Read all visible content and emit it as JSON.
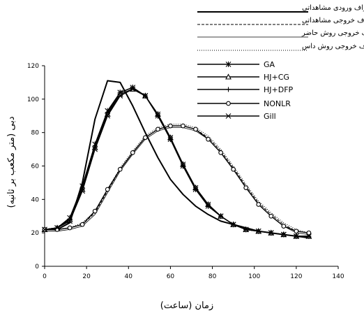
{
  "chart_data": {
    "type": "line",
    "title": "",
    "xlabel": "زمان (ساعت)",
    "ylabel": "دبی (متر مکعب بر ثانیه)",
    "xlim": [
      0,
      140
    ],
    "ylim": [
      0,
      120
    ],
    "xticks": [
      "0",
      "20",
      "40",
      "60",
      "80",
      "100",
      "120",
      "140"
    ],
    "yticks": [
      "0",
      "20",
      "40",
      "60",
      "80",
      "100",
      "120"
    ],
    "grid": false,
    "legend_position": "top-right",
    "series": [
      {
        "name": "هیدروگراف ورودی مشاهداتی",
        "style": "thick-solid",
        "marker": "none",
        "x": [
          0,
          6,
          12,
          18,
          24,
          30,
          36,
          42,
          48,
          54,
          60,
          66,
          72,
          78,
          84,
          90,
          96,
          102,
          108,
          114,
          120,
          126
        ],
        "y": [
          22,
          22,
          26,
          50,
          88,
          111,
          110,
          96,
          80,
          65,
          52,
          43,
          36,
          31,
          27,
          25,
          23,
          21,
          20,
          19,
          18,
          17
        ]
      },
      {
        "name": "هیدروگراف خروجی مشاهداتی",
        "style": "dashed",
        "marker": "none",
        "x": [
          0,
          6,
          12,
          18,
          24,
          30,
          36,
          42,
          48,
          54,
          60,
          66,
          72,
          78,
          84,
          90,
          96,
          102,
          108,
          114,
          120,
          126
        ],
        "y": [
          22,
          22,
          23,
          25,
          32,
          45,
          58,
          68,
          77,
          82,
          84,
          84,
          82,
          77,
          69,
          59,
          48,
          38,
          31,
          25,
          21,
          20
        ]
      },
      {
        "name": "هیدروگراف خروجی روش حاضر",
        "style": "thin-solid",
        "marker": "none",
        "x": [
          0,
          6,
          12,
          18,
          24,
          30,
          36,
          42,
          48,
          54,
          60,
          66,
          72,
          78,
          84,
          90,
          96,
          102,
          108,
          114,
          120,
          126
        ],
        "y": [
          21,
          21,
          22,
          24,
          31,
          44,
          57,
          67,
          76,
          81,
          83,
          83,
          81,
          76,
          68,
          58,
          47,
          37,
          30,
          24,
          20,
          19
        ]
      },
      {
        "name": "هیدروگراف خروجی روش داس",
        "style": "dotted",
        "marker": "none",
        "x": [
          0,
          6,
          12,
          18,
          24,
          30,
          36,
          42,
          48,
          54,
          60,
          66,
          72,
          78,
          84,
          90,
          96,
          102,
          108,
          114,
          120,
          126
        ],
        "y": [
          22,
          22,
          23,
          26,
          33,
          46,
          59,
          69,
          78,
          83,
          85,
          85,
          83,
          78,
          70,
          60,
          49,
          39,
          32,
          26,
          22,
          20
        ]
      },
      {
        "name": "GA",
        "style": "solid",
        "marker": "asterisk",
        "x": [
          0,
          6,
          12,
          18,
          24,
          30,
          36,
          42,
          48,
          54,
          60,
          66,
          72,
          78,
          84,
          90,
          96,
          102,
          108,
          114,
          120,
          126
        ],
        "y": [
          22,
          23,
          29,
          48,
          73,
          93,
          104,
          107,
          102,
          90,
          76,
          60,
          46,
          36,
          30,
          25,
          22,
          21,
          20,
          19,
          18,
          18
        ]
      },
      {
        "name": "HJ+CG",
        "style": "solid",
        "marker": "triangle",
        "x": [
          0,
          6,
          12,
          18,
          24,
          30,
          36,
          42,
          48,
          54,
          60,
          66,
          72,
          78,
          84,
          90,
          96,
          102,
          108,
          114,
          120,
          126
        ],
        "y": [
          22,
          23,
          28,
          46,
          71,
          91,
          103,
          106,
          102,
          91,
          77,
          61,
          47,
          37,
          30,
          25,
          22,
          21,
          20,
          19,
          18,
          18
        ]
      },
      {
        "name": "HJ+DFP",
        "style": "solid",
        "marker": "plus",
        "x": [
          0,
          6,
          12,
          18,
          24,
          30,
          36,
          42,
          48,
          54,
          60,
          66,
          72,
          78,
          84,
          90,
          96,
          102,
          108,
          114,
          120,
          126
        ],
        "y": [
          22,
          23,
          28,
          47,
          72,
          92,
          104,
          107,
          102,
          90,
          76,
          60,
          46,
          36,
          30,
          25,
          22,
          21,
          20,
          19,
          18,
          18
        ]
      },
      {
        "name": "NONLR",
        "style": "solid",
        "marker": "circle",
        "x": [
          0,
          6,
          12,
          18,
          24,
          30,
          36,
          42,
          48,
          54,
          60,
          66,
          72,
          78,
          84,
          90,
          96,
          102,
          108,
          114,
          120,
          126
        ],
        "y": [
          22,
          22,
          23,
          25,
          33,
          46,
          58,
          68,
          77,
          82,
          84,
          84,
          82,
          76,
          68,
          58,
          47,
          37,
          30,
          24,
          21,
          20
        ]
      },
      {
        "name": "Gill",
        "style": "solid",
        "marker": "x",
        "x": [
          0,
          6,
          12,
          18,
          24,
          30,
          36,
          42,
          48,
          54,
          60,
          66,
          72,
          78,
          84,
          90,
          96,
          102,
          108,
          114,
          120,
          126
        ],
        "y": [
          22,
          23,
          27,
          45,
          70,
          90,
          102,
          106,
          102,
          91,
          77,
          61,
          47,
          37,
          30,
          25,
          22,
          21,
          20,
          19,
          18,
          18
        ]
      }
    ]
  }
}
